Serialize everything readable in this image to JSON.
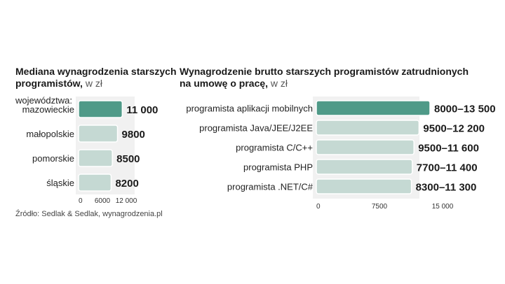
{
  "charts": [
    {
      "title_line1": "Mediana wynagrodzenia  starszych",
      "title_line2": "programistów,",
      "unit": " w zł",
      "subtitle": "województwa:",
      "source": "Źródło: Sedlak & Sedlak, wynagrodzenia.pl"
    },
    {
      "title_line1": "Wynagrodzenie brutto starszych programistów zatrudnionych",
      "title_line2": "na umowę o pracę,",
      "unit": " w zł"
    }
  ],
  "chart_data": [
    {
      "type": "bar",
      "orientation": "horizontal",
      "title": "Mediana wynagrodzenia  starszych programistów, w zł",
      "categories": [
        "mazowieckie",
        "małopolskie",
        "pomorskie",
        "śląskie"
      ],
      "values": [
        11000,
        9800,
        8500,
        8200
      ],
      "value_labels": [
        "11 000",
        "9800",
        "8500",
        "8200"
      ],
      "xlim": [
        0,
        12000
      ],
      "xticks": [
        "0",
        "6000",
        "12 000"
      ],
      "highlight_color": "#4f9a88",
      "bar_color": "#c5d9d3",
      "grid": false
    },
    {
      "type": "bar",
      "orientation": "horizontal",
      "title": "Wynagrodzenie brutto starszych programistów zatrudnionych na umowę o pracę, w zł",
      "categories": [
        "programista aplikacji mobilnych",
        "programista Java/JEE/J2EE",
        "programista C/C++",
        "programista PHP",
        "programista .NET/C#"
      ],
      "values": [
        13500,
        12200,
        11600,
        11400,
        11300
      ],
      "value_labels": [
        "8000–13 500",
        "9500–12 200",
        "9500–11 600",
        "7700–11 400",
        "8300–11 300"
      ],
      "xlim": [
        0,
        15000
      ],
      "xticks": [
        "0",
        "7500",
        "15 000"
      ],
      "highlight_color": "#4f9a88",
      "bar_color": "#c5d9d3",
      "grid": false
    }
  ]
}
